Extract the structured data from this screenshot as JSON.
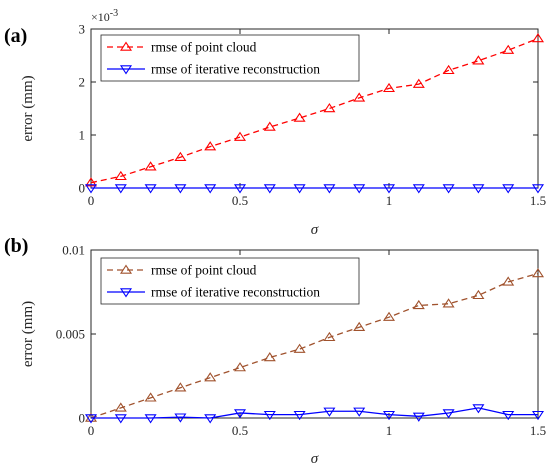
{
  "chart_data": [
    {
      "type": "line",
      "panel_label": "(a)",
      "xlabel": "σ",
      "ylabel": "error (mm)",
      "xlim": [
        0,
        1.5
      ],
      "ylim": [
        0,
        3
      ],
      "xticks": [
        "0",
        "0.5",
        "1",
        "1.5"
      ],
      "yticks": [
        "0",
        "1",
        "2",
        "3"
      ],
      "y_exponent_base": "×10",
      "y_exponent_power": "-3",
      "legend_position": "top-left",
      "x": [
        0,
        0.1,
        0.2,
        0.3,
        0.4,
        0.5,
        0.6,
        0.7,
        0.8,
        0.9,
        1.0,
        1.1,
        1.2,
        1.3,
        1.4,
        1.5
      ],
      "series": [
        {
          "name": "rmse of point cloud",
          "color": "#ff0000",
          "line_style": "dashed",
          "marker": "triangle-up",
          "values": [
            0.1,
            0.22,
            0.4,
            0.58,
            0.78,
            0.96,
            1.15,
            1.32,
            1.5,
            1.7,
            1.88,
            1.96,
            2.22,
            2.4,
            2.6,
            2.82
          ]
        },
        {
          "name": "rmse of iterative reconstruction",
          "color": "#0000ff",
          "line_style": "solid",
          "marker": "triangle-down",
          "values": [
            0.0,
            0.0,
            0.0,
            0.0,
            0.0,
            0.0,
            0.0,
            0.0,
            0.0,
            0.0,
            0.0,
            0.0,
            0.0,
            0.0,
            0.0,
            0.0
          ]
        }
      ]
    },
    {
      "type": "line",
      "panel_label": "(b)",
      "xlabel": "σ",
      "ylabel": "error (mm)",
      "xlim": [
        0,
        1.5
      ],
      "ylim": [
        0,
        0.01
      ],
      "xticks": [
        "0",
        "0.5",
        "1",
        "1.5"
      ],
      "yticks": [
        "0",
        "0.005",
        "0.01"
      ],
      "legend_position": "top-left",
      "x": [
        0,
        0.1,
        0.2,
        0.3,
        0.4,
        0.5,
        0.6,
        0.7,
        0.8,
        0.9,
        1.0,
        1.1,
        1.2,
        1.3,
        1.4,
        1.5
      ],
      "series": [
        {
          "name": "rmse of point cloud",
          "color": "#a0522d",
          "line_style": "dashed",
          "marker": "triangle-up",
          "values": [
            0.0,
            0.0006,
            0.0012,
            0.0018,
            0.0024,
            0.003,
            0.0036,
            0.0041,
            0.0048,
            0.0054,
            0.006,
            0.0067,
            0.0068,
            0.0073,
            0.0081,
            0.0086
          ]
        },
        {
          "name": "rmse of iterative reconstruction",
          "color": "#0000ff",
          "line_style": "solid",
          "marker": "triangle-down",
          "values": [
            0.0,
            0.0,
            0.0,
            5e-05,
            0.0,
            0.0003,
            0.0002,
            0.0002,
            0.0004,
            0.0004,
            0.0002,
            0.0001,
            0.0003,
            0.0006,
            0.0002,
            0.0002
          ]
        }
      ]
    }
  ]
}
